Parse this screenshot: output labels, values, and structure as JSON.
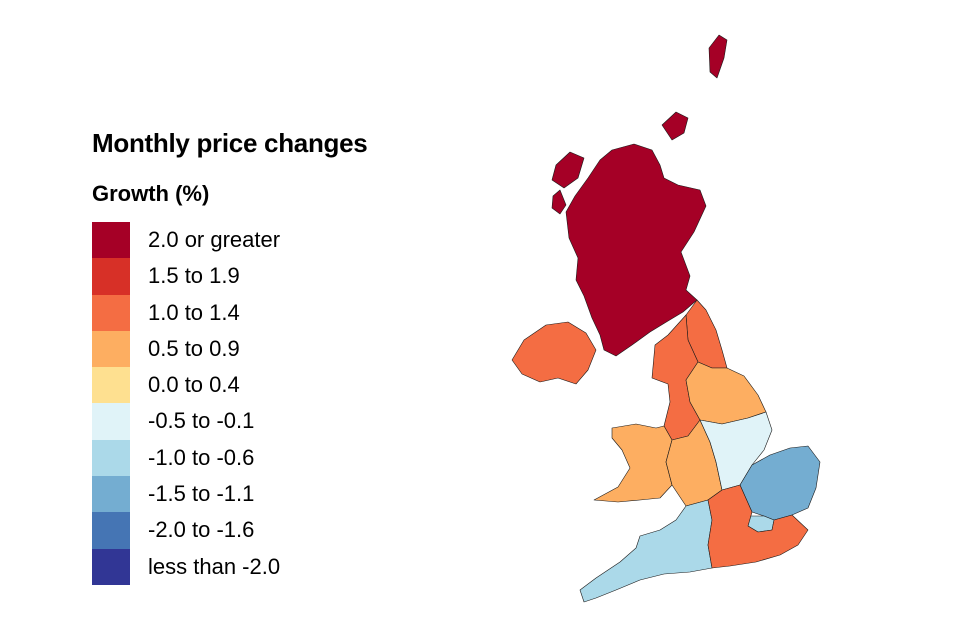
{
  "title": "Monthly price changes",
  "subtitle": "Growth (%)",
  "legend": [
    {
      "label": "2.0 or greater",
      "color": "#a50026"
    },
    {
      "label": "1.5 to 1.9",
      "color": "#d73027"
    },
    {
      "label": "1.0 to 1.4",
      "color": "#f46d43"
    },
    {
      "label": "0.5 to 0.9",
      "color": "#fdae61"
    },
    {
      "label": "0.0 to 0.4",
      "color": "#fee090"
    },
    {
      "label": "-0.5 to -0.1",
      "color": "#e0f3f8"
    },
    {
      "label": "-1.0 to -0.6",
      "color": "#abd9e9"
    },
    {
      "label": "-1.5 to -1.1",
      "color": "#74add1"
    },
    {
      "label": "-2.0 to -1.6",
      "color": "#4575b4"
    },
    {
      "label": "less than -2.0",
      "color": "#313695"
    }
  ],
  "regions": [
    {
      "name": "Scotland",
      "band": "2.0 or greater"
    },
    {
      "name": "Northern Ireland",
      "band": "1.0 to 1.4"
    },
    {
      "name": "North East",
      "band": "1.0 to 1.4"
    },
    {
      "name": "North West",
      "band": "1.0 to 1.4"
    },
    {
      "name": "Yorkshire and The Humber",
      "band": "0.5 to 0.9"
    },
    {
      "name": "Wales",
      "band": "0.5 to 0.9"
    },
    {
      "name": "West Midlands",
      "band": "0.5 to 0.9"
    },
    {
      "name": "East Midlands",
      "band": "-0.5 to -0.1"
    },
    {
      "name": "East of England",
      "band": "-1.5 to -1.1"
    },
    {
      "name": "London",
      "band": "-1.0 to -0.6"
    },
    {
      "name": "South West",
      "band": "-1.0 to -0.6"
    },
    {
      "name": "South East",
      "band": "1.0 to 1.4"
    }
  ]
}
